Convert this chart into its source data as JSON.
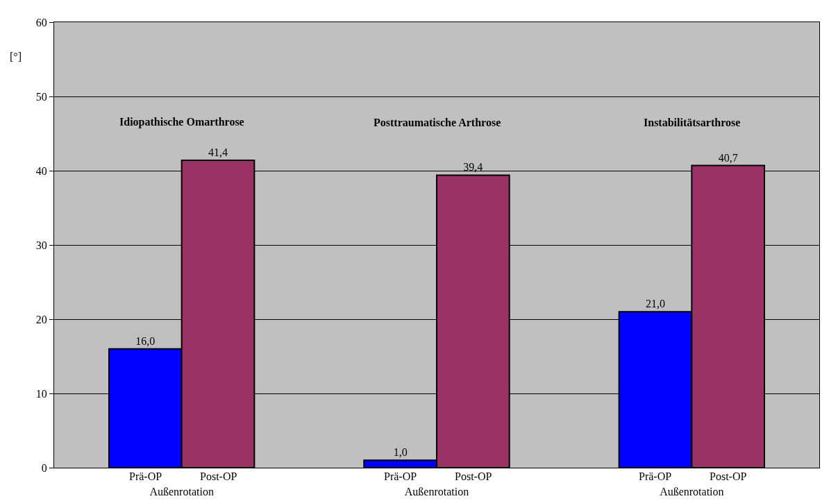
{
  "chart_data": {
    "type": "bar",
    "ylabel": "[°]",
    "categories": [
      "Außenrotation",
      "Außenrotation",
      "Außenrotation"
    ],
    "series": [
      {
        "name": "Prä-OP",
        "color": "#0000ff",
        "values": [
          16.0,
          1.0,
          21.0
        ],
        "value_labels": [
          "16,0",
          "1,0",
          "21,0"
        ]
      },
      {
        "name": "Post-OP",
        "color": "#993366",
        "values": [
          41.4,
          39.4,
          40.7
        ],
        "value_labels": [
          "41,4",
          "39,4",
          "40,7"
        ]
      }
    ],
    "annotations": [
      "Idiopathische Omarthrose",
      "Posttraumatische Arthrose",
      "Instabilitätsarthrose"
    ],
    "ylim": [
      0,
      60
    ],
    "yticks": [
      0,
      10,
      20,
      30,
      40,
      50,
      60
    ],
    "grid": "y",
    "legend": false
  }
}
